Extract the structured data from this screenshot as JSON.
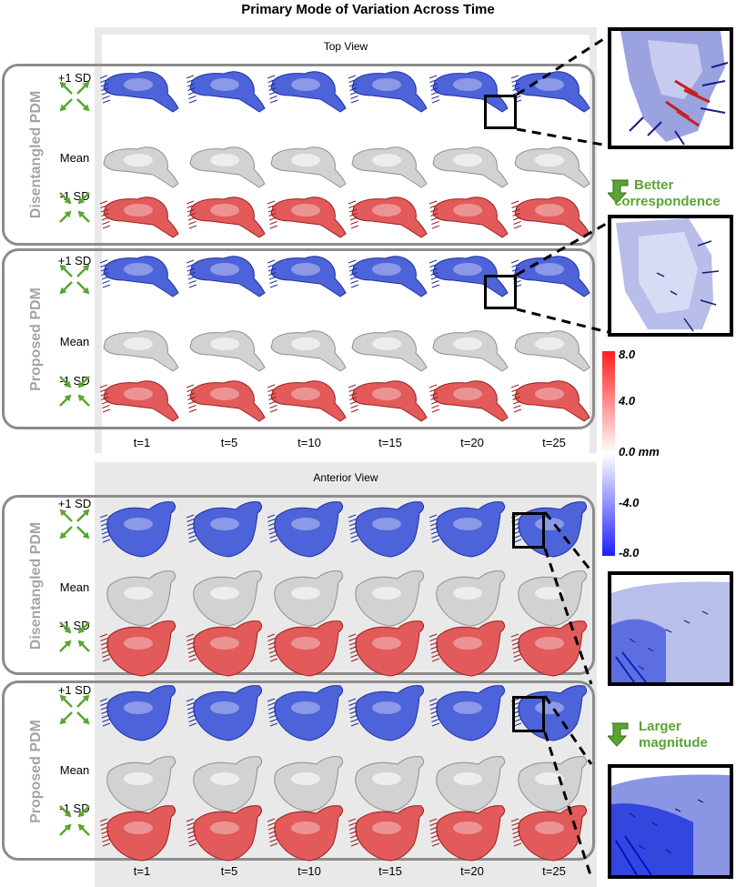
{
  "title": "Primary Mode of Variation Across Time",
  "views": [
    {
      "id": "top",
      "title": "Top View",
      "groups": [
        {
          "label": "Disentangled PDM",
          "rows": [
            "+1 SD",
            "Mean",
            "-1 SD"
          ]
        },
        {
          "label": "Proposed PDM",
          "rows": [
            "+1 SD",
            "Mean",
            "-1 SD"
          ]
        }
      ]
    },
    {
      "id": "anterior",
      "title": "Anterior View",
      "groups": [
        {
          "label": "Disentangled PDM",
          "rows": [
            "+1 SD",
            "Mean",
            "-1 SD"
          ]
        },
        {
          "label": "Proposed PDM",
          "rows": [
            "+1 SD",
            "Mean",
            "-1 SD"
          ]
        }
      ]
    }
  ],
  "time_points": [
    "t=1",
    "t=5",
    "t=10",
    "t=15",
    "t=20",
    "t=25"
  ],
  "colorbar": {
    "ticks": [
      "8.0",
      "4.0",
      "0.0 mm",
      "-4.0",
      "-8.0"
    ],
    "max_color": "#ff1e1e",
    "mid_color": "#ffffff",
    "min_color": "#1e1eff"
  },
  "callouts": {
    "top": [
      "Better",
      "correspondence"
    ],
    "anterior": [
      "Larger",
      "magnitude"
    ]
  },
  "colors": {
    "plus_sd": "#4d63d9",
    "mean": "#d2d2d2",
    "minus_sd": "#e25a5a",
    "arrow": "#5aa532",
    "group_border": "#8c8c8c",
    "group_label": "#a4a4a4"
  }
}
